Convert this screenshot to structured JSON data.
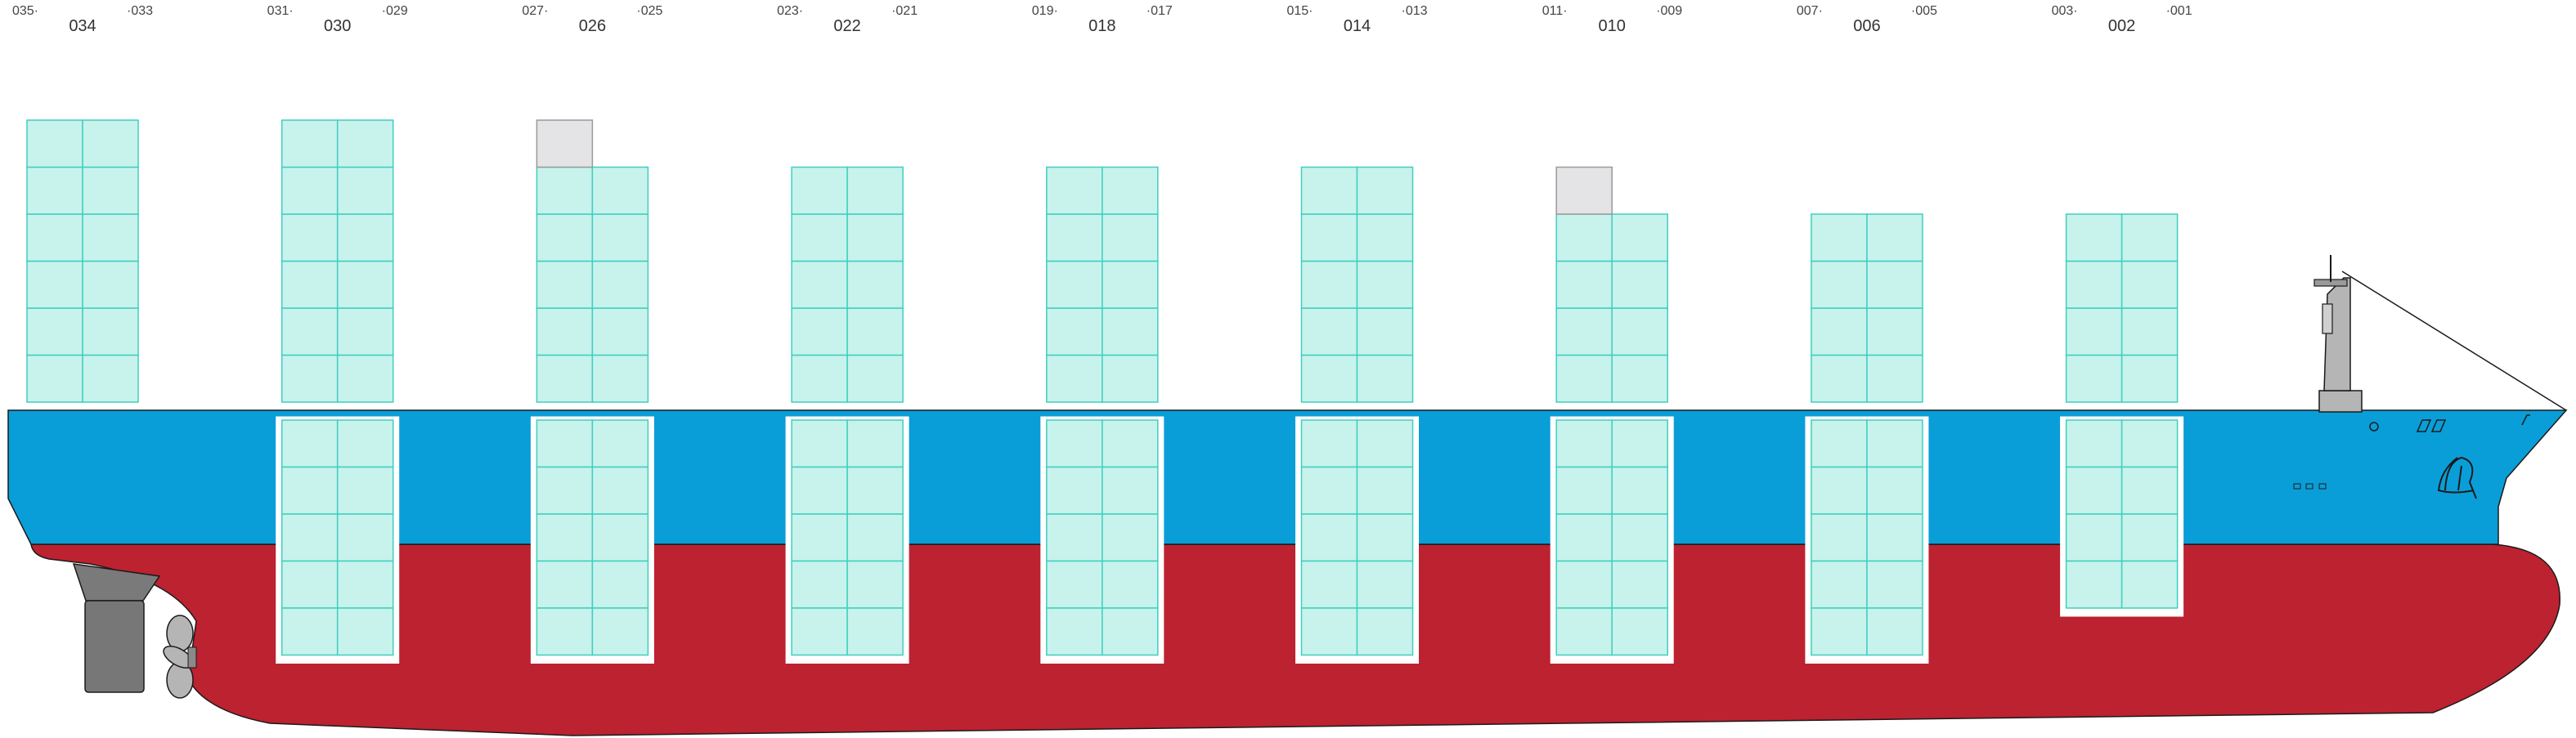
{
  "bays": [
    {
      "bay": "034",
      "left_row": "035",
      "right_row": "033",
      "deck_tiers": 6,
      "hold_tiers": 5,
      "hatch_box": false
    },
    {
      "bay": "030",
      "left_row": "031",
      "right_row": "029",
      "deck_tiers": 6,
      "hold_tiers": 5,
      "hatch_box": false
    },
    {
      "bay": "026",
      "left_row": "027",
      "right_row": "025",
      "deck_tiers": 5,
      "hold_tiers": 5,
      "hatch_box": true
    },
    {
      "bay": "022",
      "left_row": "023",
      "right_row": "021",
      "deck_tiers": 5,
      "hold_tiers": 5,
      "hatch_box": false
    },
    {
      "bay": "018",
      "left_row": "019",
      "right_row": "017",
      "deck_tiers": 5,
      "hold_tiers": 5,
      "hatch_box": false
    },
    {
      "bay": "014",
      "left_row": "015",
      "right_row": "013",
      "deck_tiers": 5,
      "hold_tiers": 5,
      "hatch_box": false
    },
    {
      "bay": "010",
      "left_row": "011",
      "right_row": "009",
      "deck_tiers": 4,
      "hold_tiers": 5,
      "hatch_box": true
    },
    {
      "bay": "006",
      "left_row": "007",
      "right_row": "005",
      "deck_tiers": 4,
      "hold_tiers": 5,
      "hatch_box": false
    },
    {
      "bay": "002",
      "left_row": "003",
      "right_row": "001",
      "deck_tiers": 4,
      "hold_tiers": 4,
      "hatch_box": false
    }
  ],
  "colors": {
    "container_fill": "#c8f2ec",
    "container_stroke": "#3fcfbf",
    "empty_slot_fill": "#e4e4e6",
    "empty_slot_stroke": "#9a9a9a",
    "hull_red": "#bc2230",
    "hull_blue": "#0a9ed8",
    "hold_frame": "#ffffff",
    "outline": "#1a1a1a",
    "machinery_gray": "#b5b5b5",
    "rudder_gray": "#777777"
  }
}
